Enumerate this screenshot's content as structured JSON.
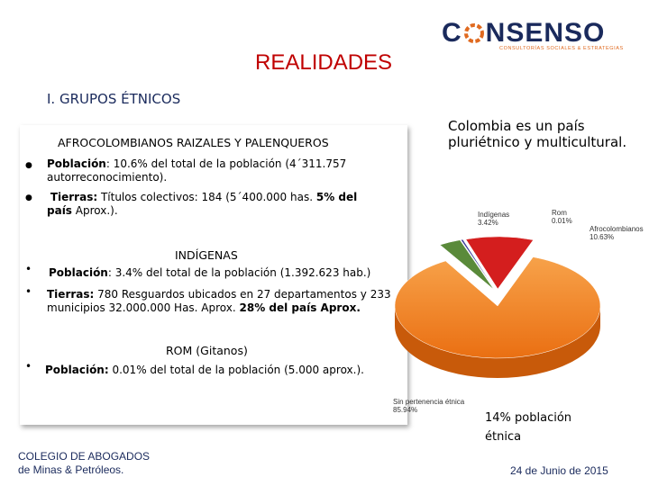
{
  "title": "REALIDADES",
  "logo": {
    "brand_start": "C",
    "brand_end": "NSENSO",
    "tagline": "CONSULTORÍAS SOCIALES & ESTRATEGIAS",
    "colors": {
      "navy": "#1a2a5c",
      "orange": "#e06a20"
    }
  },
  "subtitle": "I. GRUPOS ÉTNICOS",
  "sections": {
    "afro": {
      "heading": "AFROCOLOMBIANOS RAIZALES Y PALENQUEROS",
      "items": [
        {
          "label": "Población",
          "text": ": 10.6% del total de la población (4´311.757",
          "text2": "autorreconocimiento)."
        },
        {
          "label": "Tierras:",
          "text": " Títulos colectivos: 184 (5´400.000 has. ",
          "bold": "5% del",
          "text2_bold": "país",
          "text2": " Aprox.)."
        }
      ]
    },
    "indigenas": {
      "heading": "INDÍGENAS",
      "items": [
        {
          "label": "Población",
          "text": ": 3.4% del total de la población (1.392.623  hab.)"
        },
        {
          "label": "Tierras:",
          "text": " 780 Resguardos ubicados en 27 departamentos y 233",
          "text2": "municipios 32.000.000  Has. Aprox. ",
          "bold2": "28% del país Aprox."
        }
      ]
    },
    "rom": {
      "heading": "ROM (Gitanos)",
      "items": [
        {
          "label": "Población:",
          "text": " 0.01% del total de la población (5.000 aprox.)."
        }
      ]
    }
  },
  "right_text": "Colombia es un país pluriétnico y multicultural.",
  "chart_data": {
    "type": "pie",
    "categories": [
      "Sin pertenencia étnica",
      "Afrocolombianos",
      "Indígenas",
      "Rom"
    ],
    "values": [
      85.94,
      10.63,
      3.42,
      0.01
    ],
    "labels": [
      {
        "name": "Sin pertenencia étnica",
        "value": "85.94%"
      },
      {
        "name": "Afrocolombianos",
        "value": "10.63%"
      },
      {
        "name": "Indígenas",
        "value": "3.42%"
      },
      {
        "name": "Rom",
        "value": "0.01%"
      }
    ],
    "colors": [
      "#ee7a1c",
      "#d41e1e",
      "#5a8a3a",
      "#3a3a9a"
    ]
  },
  "ethnic_note": "14% población étnica",
  "footer": {
    "left_line1": "COLEGIO DE ABOGADOS",
    "left_line2": "de Minas & Petróleos.",
    "date": "24 de Junio de 2015"
  }
}
